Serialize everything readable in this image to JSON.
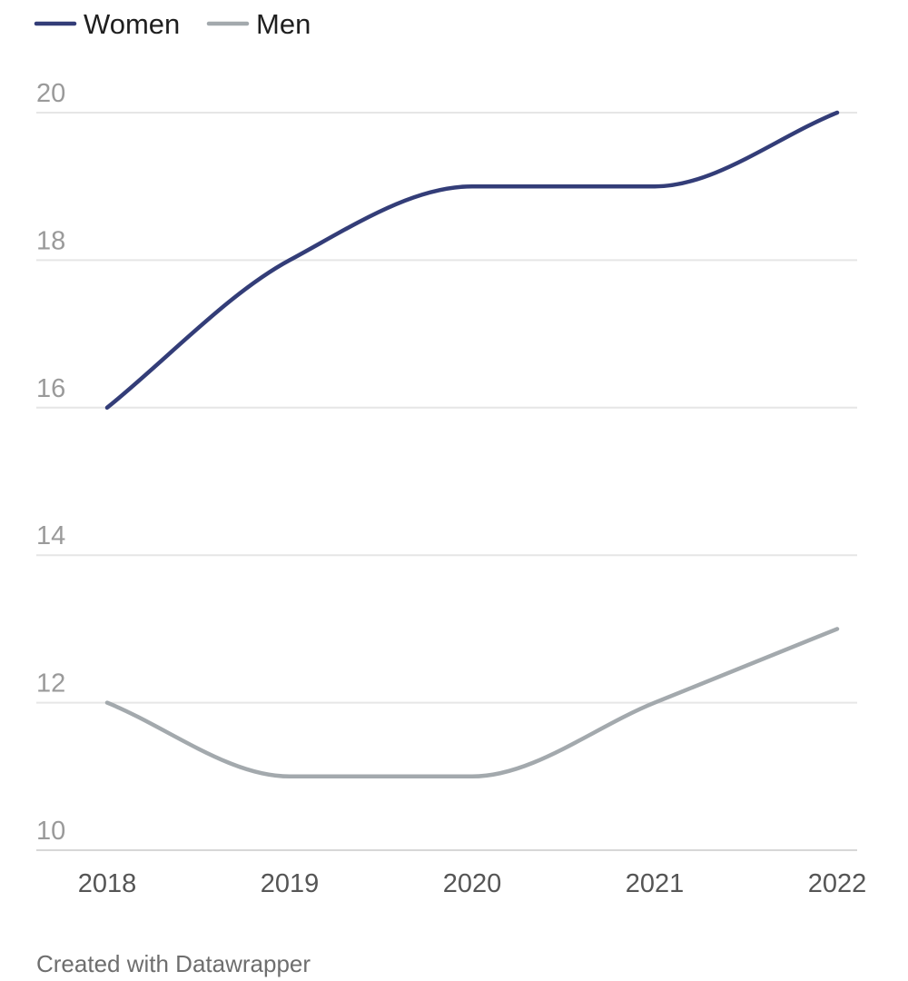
{
  "colors": {
    "women": "#333d78",
    "men": "#a3a9ad"
  },
  "footer": {
    "credit": "Created with Datawrapper"
  },
  "chart_data": {
    "type": "line",
    "x": [
      "2018",
      "2019",
      "2020",
      "2021",
      "2022"
    ],
    "series": [
      {
        "name": "Women",
        "values": [
          16,
          18,
          19,
          19,
          20
        ]
      },
      {
        "name": "Men",
        "values": [
          12,
          11,
          11,
          12,
          13
        ]
      }
    ],
    "yticks": [
      10,
      12,
      14,
      16,
      18,
      20
    ],
    "ylim": [
      10,
      20
    ],
    "grid": true,
    "legend": "top-left",
    "title": "",
    "xlabel": "",
    "ylabel": ""
  }
}
